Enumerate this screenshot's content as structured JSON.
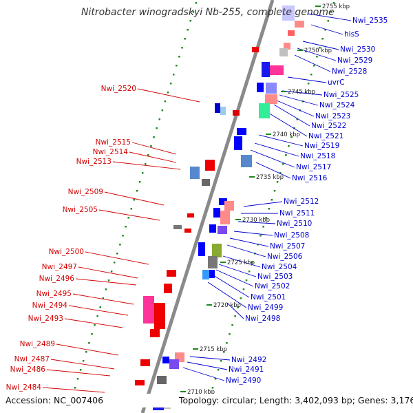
{
  "title": "Nitrobacter winogradskyi Nb-255, complete genome",
  "footer": {
    "accession": "Accession: NC_007406",
    "topology": "Topology: circular; Length: 3,402,093 bp; Genes: 3,176"
  },
  "colors": {
    "backbone": "#8a8a8a",
    "left_label": "#d40000",
    "right_label": "#0000cc",
    "dot_ring": "#1a8a1a"
  },
  "kbp_ticks": [
    "2755 kbp",
    "2750 kbp",
    "2745 kbp",
    "2740 kbp",
    "2735 kbp",
    "2730 kbp",
    "2725 kbp",
    "2720 kbp",
    "2715 kbp",
    "2710 kbp"
  ],
  "left_labels": [
    "Nwi_2520",
    "Nwi_2515",
    "Nwi_2514",
    "Nwi_2513",
    "Nwi_2509",
    "Nwi_2505",
    "Nwi_2500",
    "Nwi_2497",
    "Nwi_2496",
    "Nwi_2495",
    "Nwi_2494",
    "Nwi_2493",
    "Nwi_2489",
    "Nwi_2487",
    "Nwi_2486",
    "Nwi_2484"
  ],
  "right_labels": [
    "Nwi_2535",
    "hisS",
    "Nwi_2530",
    "Nwi_2529",
    "Nwi_2528",
    "uvrC",
    "Nwi_2525",
    "Nwi_2524",
    "Nwi_2523",
    "Nwi_2522",
    "Nwi_2521",
    "Nwi_2519",
    "Nwi_2518",
    "Nwi_2517",
    "Nwi_2516",
    "Nwi_2512",
    "Nwi_2511",
    "Nwi_2510",
    "Nwi_2508",
    "Nwi_2507",
    "Nwi_2506",
    "Nwi_2504",
    "Nwi_2503",
    "Nwi_2502",
    "Nwi_2501",
    "Nwi_2499",
    "Nwi_2498",
    "Nwi_2492",
    "Nwi_2491",
    "Nwi_2490"
  ]
}
